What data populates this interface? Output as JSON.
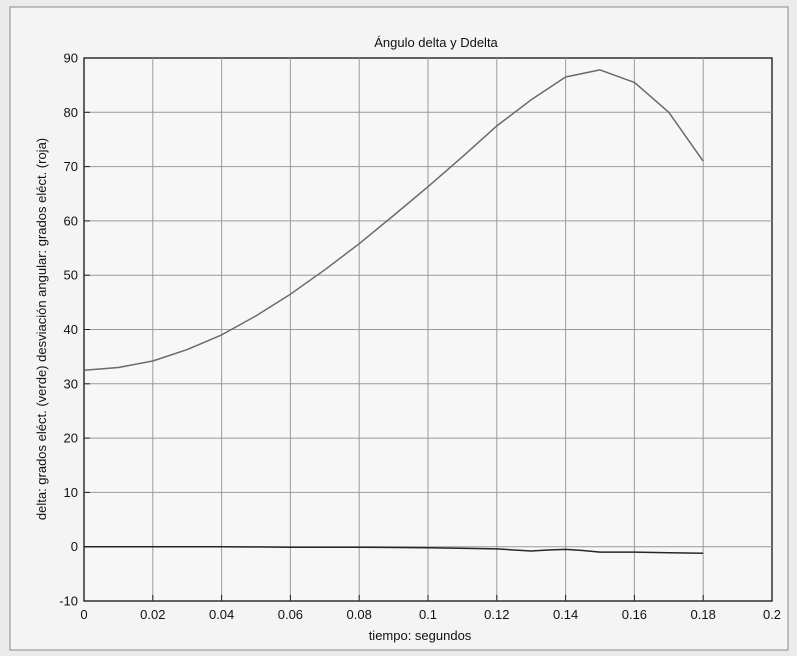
{
  "chart_data": {
    "type": "line",
    "title": "Ángulo delta y Ddelta",
    "xlabel": "tiempo: segundos",
    "ylabel": "delta: grados eléct. (verde) desviación angular: grados eléct. (roja)",
    "xlim": [
      0,
      0.2
    ],
    "ylim": [
      -10,
      90
    ],
    "xticks": [
      0,
      0.02,
      0.04,
      0.06,
      0.08,
      0.1,
      0.12,
      0.14,
      0.16,
      0.18,
      0.2
    ],
    "xtick_labels": [
      "0",
      "0.02",
      "0.04",
      "0.06",
      "0.08",
      "0.1",
      "0.12",
      "0.14",
      "0.16",
      "0.18",
      "0.2"
    ],
    "yticks": [
      -10,
      0,
      10,
      20,
      30,
      40,
      50,
      60,
      70,
      80,
      90
    ],
    "ytick_labels": [
      "-10",
      "0",
      "10",
      "20",
      "30",
      "40",
      "50",
      "60",
      "70",
      "80",
      "90"
    ],
    "grid": true,
    "series": [
      {
        "color": "#6a6a6a",
        "x": [
          0,
          0.01,
          0.02,
          0.03,
          0.04,
          0.05,
          0.06,
          0.07,
          0.08,
          0.09,
          0.1,
          0.11,
          0.12,
          0.13,
          0.14,
          0.15,
          0.16,
          0.17,
          0.18
        ],
        "y": [
          32.5,
          33,
          34.2,
          36.3,
          39,
          42.5,
          46.5,
          51,
          55.8,
          61,
          66.3,
          71.8,
          77.5,
          82.3,
          86.5,
          87.8,
          85.5,
          80,
          71
        ]
      },
      {
        "color": "#262626",
        "x": [
          0,
          0.02,
          0.04,
          0.06,
          0.08,
          0.1,
          0.12,
          0.125,
          0.13,
          0.135,
          0.14,
          0.145,
          0.15,
          0.16,
          0.17,
          0.18
        ],
        "y": [
          0,
          0,
          0,
          -0.1,
          -0.1,
          -0.2,
          -0.4,
          -0.6,
          -0.8,
          -0.6,
          -0.5,
          -0.7,
          -1,
          -1,
          -1.1,
          -1.2
        ]
      }
    ]
  }
}
